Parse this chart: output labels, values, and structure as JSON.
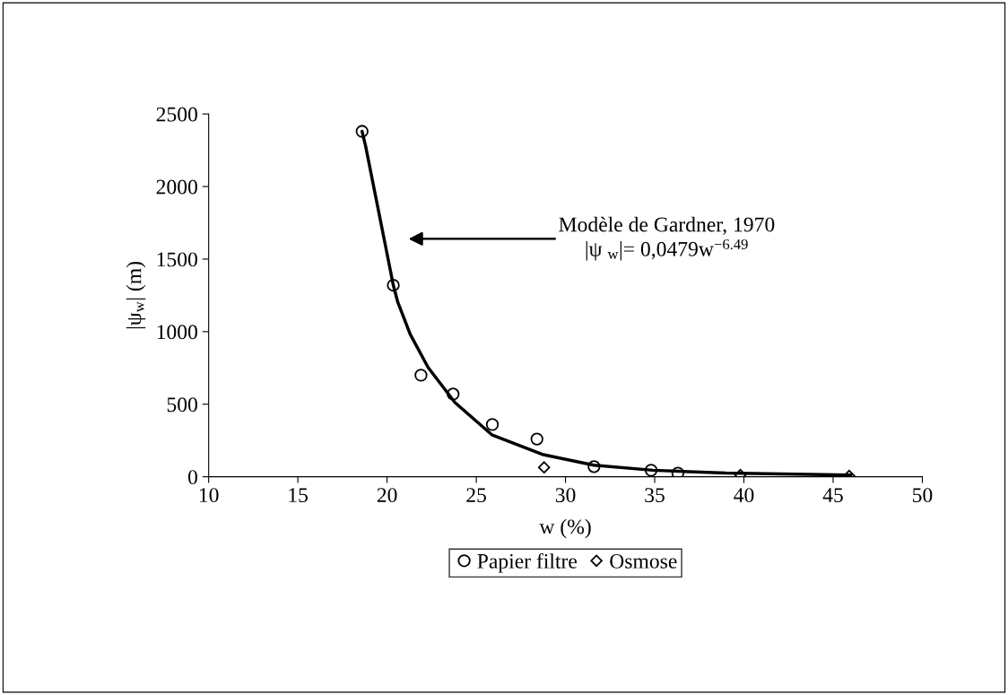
{
  "chart_data": {
    "type": "scatter",
    "xlabel": "w (%)",
    "ylabel": "|ψ$_{w}$| (m)",
    "xlim": [
      10,
      50
    ],
    "xticks": [
      10,
      15,
      20,
      25,
      30,
      35,
      40,
      45,
      50
    ],
    "ylim": [
      0,
      2500
    ],
    "yticks": [
      0,
      500,
      1000,
      1500,
      2000,
      2500
    ],
    "grid": false,
    "legend": "bottom",
    "series": [
      {
        "name": "Papier filtre",
        "marker": "circle",
        "color": "#000000",
        "x": [
          18.6,
          20.35,
          21.9,
          23.7,
          25.9,
          28.4,
          31.6,
          34.8,
          36.3
        ],
        "values": [
          2380,
          1320,
          700,
          570,
          360,
          260,
          70,
          45,
          25
        ]
      },
      {
        "name": "Osmose",
        "marker": "diamond",
        "color": "#000000",
        "x": [
          28.8,
          39.8,
          45.9
        ],
        "values": [
          65,
          12,
          6
        ]
      },
      {
        "type": "line",
        "marker": "none",
        "line_style": "solid",
        "color": "#000000",
        "x": [
          18.6,
          18.8,
          19.3,
          19.8,
          20.35,
          20.6,
          21.3,
          22.3,
          23.8,
          25.9,
          28.7,
          31.6,
          34.9,
          39.0,
          46.0
        ],
        "values": [
          2380,
          2277,
          1968,
          1660,
          1320,
          1203,
          981,
          753,
          512,
          287,
          154,
          80,
          45,
          25,
          12
        ]
      }
    ],
    "annotations": [
      "Modèle de Gardner, 1970\n|ψ $_{w}$|= 0,0479w$^{−6.49}$"
    ]
  }
}
